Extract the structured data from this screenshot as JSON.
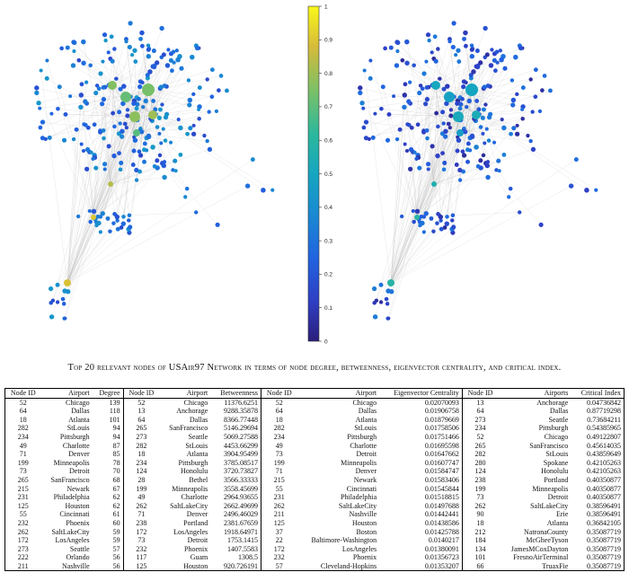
{
  "colorbar": {
    "ticks": [
      "0",
      "0.1",
      "0.2",
      "0.3",
      "0.4",
      "0.5",
      "0.6",
      "0.7",
      "0.8",
      "0.9",
      "1"
    ]
  },
  "caption": "Top 20 relevant nodes of USAir97 Network in terms of node degree, betweenness, eigenvector centrality, and critical index.",
  "table": {
    "headers": [
      "Node ID",
      "Airport",
      "Degree",
      "Node ID",
      "Airport",
      "Betweenness",
      "Node ID",
      "Airport",
      "Eigenvector Centrality",
      "Node ID",
      "Airports",
      "Critical Index"
    ],
    "rows": [
      [
        "52",
        "Chicago",
        "139",
        "52",
        "Chicago",
        "11376.6251",
        "52",
        "Chicago",
        "0.02070093",
        "13",
        "Anchorage",
        "0.04736842"
      ],
      [
        "64",
        "Dallas",
        "118",
        "13",
        "Anchorage",
        "9288.35878",
        "64",
        "Dallas",
        "0.01906758",
        "64",
        "Dallas",
        "0.87719298"
      ],
      [
        "18",
        "Atlanta",
        "101",
        "64",
        "Dallas",
        "8366.77448",
        "18",
        "Atlanta",
        "0.01879669",
        "273",
        "Seattle",
        "0.73684211"
      ],
      [
        "282",
        "StLouis",
        "94",
        "265",
        "SanFrancisco",
        "5146.29694",
        "282",
        "StLouis",
        "0.01758506",
        "234",
        "Pittsburgh",
        "0.54385965"
      ],
      [
        "234",
        "Pittsburgh",
        "94",
        "273",
        "Seattle",
        "5069.27588",
        "234",
        "Pittsburgh",
        "0.01751466",
        "52",
        "Chicago",
        "0.49122807"
      ],
      [
        "49",
        "Charlotte",
        "87",
        "282",
        "StLouis",
        "4453.66299",
        "49",
        "Charlotte",
        "0.01695598",
        "265",
        "SanFrancisco",
        "0.45614035"
      ],
      [
        "71",
        "Denver",
        "85",
        "18",
        "Atlanta",
        "3904.95499",
        "73",
        "Detroit",
        "0.01647662",
        "282",
        "StLouis",
        "0.43859649"
      ],
      [
        "199",
        "Minneapolis",
        "78",
        "234",
        "Pittsburgh",
        "3785.08517",
        "199",
        "Minneapolis",
        "0.01607747",
        "280",
        "Spokane",
        "0.42105263"
      ],
      [
        "73",
        "Detroit",
        "70",
        "124",
        "Honolulu",
        "3720.73827",
        "71",
        "Denver",
        "0.01584747",
        "124",
        "Honolulu",
        "0.42105263"
      ],
      [
        "265",
        "SanFrancisco",
        "68",
        "28",
        "Bethel",
        "3566.33333",
        "215",
        "Newark",
        "0.01583406",
        "238",
        "Portland",
        "0.40350877"
      ],
      [
        "215",
        "Newark",
        "67",
        "199",
        "Minneapolis",
        "3558.45699",
        "55",
        "Cincinnati",
        "0.01545844",
        "199",
        "Minneapolis",
        "0.40350877"
      ],
      [
        "231",
        "Philadelphia",
        "62",
        "49",
        "Charlotte",
        "2964.93655",
        "231",
        "Philadelphia",
        "0.01518815",
        "73",
        "Detroit",
        "0.40350877"
      ],
      [
        "125",
        "Houston",
        "62",
        "262",
        "SaltLakeCity",
        "2662.49699",
        "262",
        "SaltLakeCity",
        "0.01497688",
        "262",
        "SaltLakeCity",
        "0.38596491"
      ],
      [
        "55",
        "Cincinnati",
        "61",
        "71",
        "Denver",
        "2496.46029",
        "211",
        "Nashville",
        "0.01442441",
        "90",
        "Erie",
        "0.38596491"
      ],
      [
        "232",
        "Phoenix",
        "60",
        "238",
        "Portland",
        "2381.67659",
        "125",
        "Houston",
        "0.01438586",
        "18",
        "Atlanta",
        "0.36842105"
      ],
      [
        "262",
        "SaltLakeCity",
        "59",
        "172",
        "LosAngeles",
        "1918.64971",
        "37",
        "Boston",
        "0.01425788",
        "212",
        "NatronaCounty",
        "0.35087719"
      ],
      [
        "172",
        "LosAngeles",
        "59",
        "73",
        "Detroit",
        "1753.1415",
        "22",
        "Baltimore-Washington",
        "0.0140217",
        "184",
        "McGheeTyson",
        "0.35087719"
      ],
      [
        "273",
        "Seattle",
        "57",
        "232",
        "Phoenix",
        "1407.5583",
        "172",
        "LosAngeles",
        "0.01380091",
        "134",
        "JamesMCoxDayton",
        "0.35087719"
      ],
      [
        "222",
        "Orlando",
        "56",
        "117",
        "Guam",
        "1308.5",
        "232",
        "Phoenix",
        "0.01356723",
        "101",
        "FresnoAirTerminal",
        "0.35087719"
      ],
      [
        "211",
        "Nashville",
        "56",
        "125",
        "Houston",
        "920.726191",
        "57",
        "Cleveland-Hopkins",
        "0.01353207",
        "66",
        "TruaxFie",
        "0.35087719"
      ]
    ]
  }
}
